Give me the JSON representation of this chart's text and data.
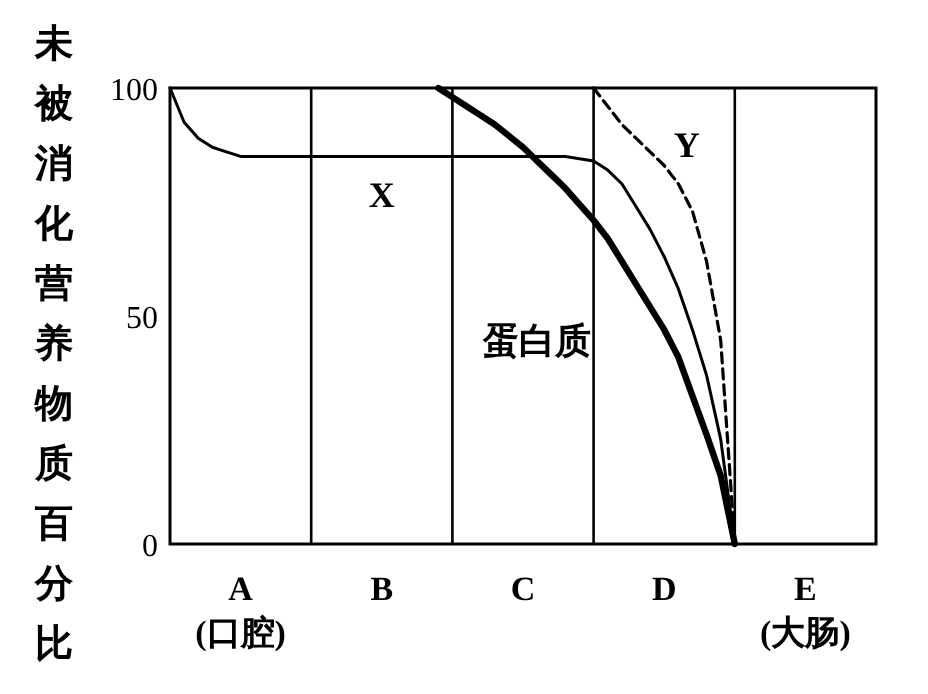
{
  "chart_data": {
    "type": "line",
    "ylabel": "未被消化营养物质百分比",
    "categories": [
      null,
      null,
      null,
      null,
      null,
      "A\n(口腔)",
      null,
      null,
      null,
      null,
      null,
      null,
      null,
      null,
      null,
      "B",
      null,
      null,
      null,
      null,
      null,
      null,
      null,
      null,
      null,
      "C",
      null,
      null,
      null,
      null,
      null,
      null,
      null,
      null,
      null,
      "D",
      null,
      null,
      null,
      null,
      null,
      null,
      null,
      null,
      null,
      "E\n(大肠)",
      null,
      null,
      null,
      null,
      null
    ],
    "ylim": [
      0,
      100
    ],
    "yticks": [
      0,
      50,
      100
    ],
    "series": [
      {
        "name": "X",
        "color": "#000000",
        "line_style": "solid",
        "values": [
          100,
          92.5,
          89,
          87,
          86,
          85,
          85,
          85,
          85,
          85,
          85,
          85,
          85,
          85,
          85,
          85,
          85,
          85,
          85,
          85,
          85,
          85,
          85,
          85,
          85,
          85,
          85,
          85,
          85,
          84.5,
          84,
          82,
          79,
          74,
          69,
          63,
          56,
          47,
          37,
          23,
          0,
          null,
          null,
          null,
          null,
          null,
          null,
          null,
          null,
          null,
          null
        ]
      },
      {
        "name": "蛋白质",
        "color": "#000000",
        "line_style": "solid",
        "values": [
          null,
          null,
          null,
          null,
          null,
          null,
          null,
          null,
          null,
          null,
          null,
          null,
          null,
          null,
          null,
          null,
          null,
          null,
          null,
          100,
          98,
          96,
          94,
          92,
          89.5,
          87,
          84,
          81,
          78,
          74.5,
          71,
          67,
          62,
          57,
          52,
          47,
          41,
          32.5,
          24,
          15,
          0,
          null,
          null,
          null,
          null,
          null,
          null,
          null,
          null,
          null,
          null
        ]
      },
      {
        "name": "Y",
        "color": "#000000",
        "line_style": "dashed",
        "values": [
          null,
          null,
          null,
          null,
          null,
          null,
          null,
          null,
          null,
          null,
          null,
          null,
          null,
          null,
          null,
          null,
          null,
          null,
          null,
          null,
          null,
          null,
          null,
          null,
          null,
          null,
          null,
          null,
          null,
          null,
          100,
          96,
          92,
          89,
          86,
          83,
          79,
          73,
          62,
          44.7,
          0,
          null,
          null,
          null,
          null,
          null,
          null,
          null,
          null,
          null,
          null
        ]
      }
    ]
  }
}
